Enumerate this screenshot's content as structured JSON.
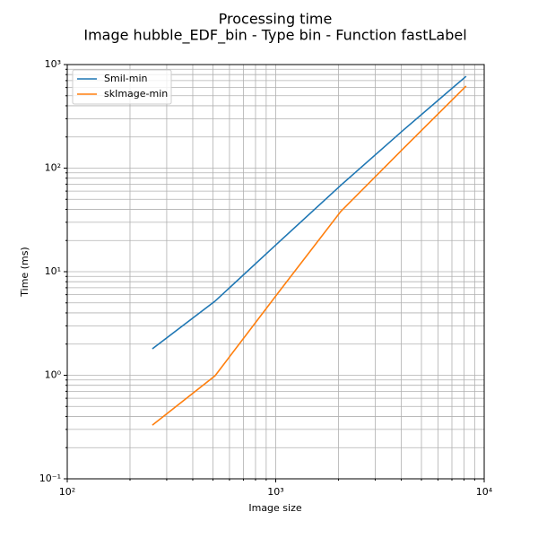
{
  "chart_data": {
    "type": "line",
    "title": "Processing time",
    "subtitle": "Image hubble_EDF_bin - Type bin - Function fastLabel",
    "x_label": "Image size",
    "y_label": "Time (ms)",
    "x": [
      256,
      512,
      1024,
      2048,
      4096,
      8192
    ],
    "series": [
      {
        "name": "Smil-min",
        "color": "#1f77b4",
        "values": [
          1.8,
          5.2,
          18.9,
          68,
          233,
          771
        ]
      },
      {
        "name": "skImage-min",
        "color": "#ff7f0e",
        "values": [
          0.33,
          0.99,
          6.2,
          38,
          155,
          620
        ]
      }
    ],
    "xlim": [
      100,
      10000
    ],
    "ylim": [
      0.1,
      1000
    ],
    "xticks": [
      {
        "value": 100,
        "label": "10²"
      },
      {
        "value": 1000,
        "label": "10³"
      },
      {
        "value": 10000,
        "label": "10⁴"
      }
    ],
    "yticks": [
      {
        "value": 0.1,
        "label": "10⁻¹"
      },
      {
        "value": 1,
        "label": "10⁰"
      },
      {
        "value": 10,
        "label": "10¹"
      },
      {
        "value": 100,
        "label": "10²"
      },
      {
        "value": 1000,
        "label": "10³"
      }
    ],
    "x_minor_ticks": [
      200,
      300,
      400,
      500,
      600,
      700,
      800,
      900,
      2000,
      3000,
      4000,
      5000,
      6000,
      7000,
      8000,
      9000
    ],
    "y_minor_ticks": [
      0.2,
      0.3,
      0.4,
      0.5,
      0.6,
      0.7,
      0.8,
      0.9,
      2,
      3,
      4,
      5,
      6,
      7,
      8,
      9,
      20,
      30,
      40,
      50,
      60,
      70,
      80,
      90,
      200,
      300,
      400,
      500,
      600,
      700,
      800,
      900
    ],
    "x_log": true,
    "y_log": true,
    "grid": true,
    "legend": "upper left"
  }
}
